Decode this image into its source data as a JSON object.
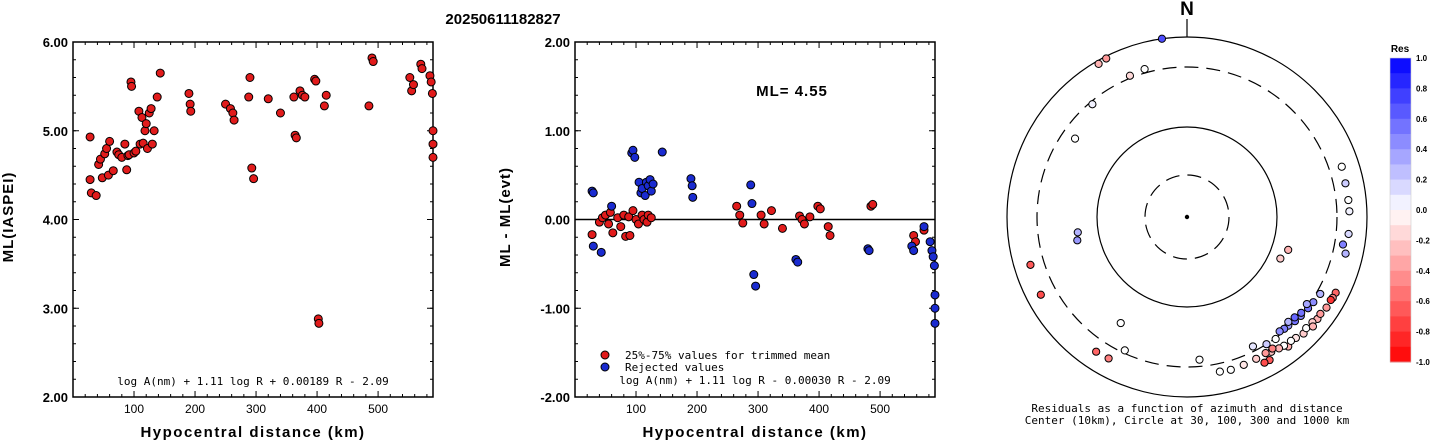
{
  "figure_title": "20250611182827",
  "colors": {
    "red": "#e11b1b",
    "blue": "#1a2bd0",
    "black": "#000000"
  },
  "chart_data": [
    {
      "type": "scatter",
      "ylabel": "ML(IASPEI)",
      "xlabel": "Hypocentral distance (km)",
      "xlim": [
        0,
        590
      ],
      "ylim": [
        2.0,
        6.0
      ],
      "xticks": [
        100,
        200,
        300,
        400,
        500
      ],
      "yticks": [
        2.0,
        3.0,
        4.0,
        5.0,
        6.0
      ],
      "ytick_labels": [
        "2.00",
        "3.00",
        "4.00",
        "5.00",
        "6.00"
      ],
      "formula": "log A(nm) + 1.11 log R + 0.00189 R - 2.09",
      "series": [
        {
          "color": "red",
          "points": [
            [
              28,
              4.93
            ],
            [
              28,
              4.45
            ],
            [
              30,
              4.3
            ],
            [
              38,
              4.27
            ],
            [
              42,
              4.62
            ],
            [
              45,
              4.68
            ],
            [
              48,
              4.47
            ],
            [
              52,
              4.74
            ],
            [
              55,
              4.8
            ],
            [
              58,
              4.5
            ],
            [
              60,
              4.88
            ],
            [
              66,
              4.55
            ],
            [
              72,
              4.76
            ],
            [
              75,
              4.73
            ],
            [
              80,
              4.7
            ],
            [
              85,
              4.85
            ],
            [
              88,
              4.56
            ],
            [
              90,
              4.72
            ],
            [
              92,
              4.73
            ],
            [
              95,
              5.55
            ],
            [
              96,
              5.5
            ],
            [
              100,
              4.75
            ],
            [
              103,
              4.77
            ],
            [
              108,
              5.22
            ],
            [
              110,
              4.85
            ],
            [
              113,
              5.15
            ],
            [
              115,
              4.86
            ],
            [
              118,
              5.0
            ],
            [
              120,
              5.08
            ],
            [
              122,
              4.8
            ],
            [
              125,
              5.2
            ],
            [
              128,
              5.25
            ],
            [
              130,
              4.85
            ],
            [
              133,
              5.0
            ],
            [
              138,
              5.38
            ],
            [
              143,
              5.65
            ],
            [
              190,
              5.42
            ],
            [
              192,
              5.3
            ],
            [
              193,
              5.22
            ],
            [
              250,
              5.3
            ],
            [
              258,
              5.25
            ],
            [
              262,
              5.2
            ],
            [
              264,
              5.12
            ],
            [
              288,
              5.38
            ],
            [
              290,
              5.6
            ],
            [
              293,
              4.58
            ],
            [
              296,
              4.46
            ],
            [
              320,
              5.36
            ],
            [
              340,
              5.2
            ],
            [
              362,
              5.38
            ],
            [
              364,
              4.95
            ],
            [
              366,
              4.92
            ],
            [
              372,
              5.45
            ],
            [
              376,
              5.4
            ],
            [
              380,
              5.38
            ],
            [
              396,
              5.58
            ],
            [
              398,
              5.56
            ],
            [
              402,
              2.88
            ],
            [
              403,
              2.83
            ],
            [
              412,
              5.28
            ],
            [
              415,
              5.4
            ],
            [
              485,
              5.28
            ],
            [
              490,
              5.82
            ],
            [
              492,
              5.78
            ],
            [
              552,
              5.6
            ],
            [
              555,
              5.45
            ],
            [
              558,
              5.52
            ],
            [
              570,
              5.75
            ],
            [
              572,
              5.7
            ],
            [
              585,
              5.62
            ],
            [
              587,
              5.55
            ],
            [
              589,
              5.42
            ],
            [
              590,
              5.0
            ],
            [
              590,
              4.85
            ],
            [
              590,
              4.7
            ]
          ]
        }
      ]
    },
    {
      "type": "scatter",
      "ylabel": "ML - ML(evt)",
      "xlabel": "Hypocentral distance (km)",
      "xlim": [
        0,
        590
      ],
      "ylim": [
        -2.0,
        2.0
      ],
      "xticks": [
        100,
        200,
        300,
        400,
        500
      ],
      "yticks": [
        -2.0,
        -1.0,
        0.0,
        1.0,
        2.0
      ],
      "ytick_labels": [
        "-2.00",
        "-1.00",
        "0.00",
        "1.00",
        "2.00"
      ],
      "annotation": "ML= 4.55",
      "formula": "log A(nm) + 1.11 log R - 0.00030 R - 2.09",
      "legend": [
        {
          "label": "25%-75% values for trimmed mean",
          "color": "red"
        },
        {
          "label": "Rejected values",
          "color": "blue"
        }
      ],
      "series": [
        {
          "name": "25%-75% values for trimmed mean",
          "color": "red",
          "points": [
            [
              28,
              -0.17
            ],
            [
              40,
              -0.03
            ],
            [
              45,
              0.02
            ],
            [
              50,
              0.05
            ],
            [
              55,
              -0.05
            ],
            [
              58,
              0.08
            ],
            [
              62,
              -0.15
            ],
            [
              70,
              0.02
            ],
            [
              75,
              -0.08
            ],
            [
              80,
              0.05
            ],
            [
              83,
              -0.19
            ],
            [
              88,
              0.03
            ],
            [
              90,
              -0.18
            ],
            [
              95,
              0.1
            ],
            [
              100,
              0.0
            ],
            [
              104,
              -0.05
            ],
            [
              110,
              0.05
            ],
            [
              113,
              0.0
            ],
            [
              118,
              -0.03
            ],
            [
              120,
              0.05
            ],
            [
              125,
              0.02
            ],
            [
              265,
              0.15
            ],
            [
              270,
              0.05
            ],
            [
              275,
              -0.04
            ],
            [
              305,
              0.05
            ],
            [
              310,
              -0.05
            ],
            [
              322,
              0.1
            ],
            [
              340,
              -0.1
            ],
            [
              368,
              0.04
            ],
            [
              372,
              0.0
            ],
            [
              376,
              -0.05
            ],
            [
              385,
              0.03
            ],
            [
              398,
              0.15
            ],
            [
              402,
              0.12
            ],
            [
              415,
              -0.08
            ],
            [
              418,
              -0.18
            ],
            [
              485,
              0.15
            ],
            [
              488,
              0.17
            ],
            [
              555,
              -0.18
            ],
            [
              558,
              -0.25
            ],
            [
              572,
              -0.12
            ]
          ]
        },
        {
          "name": "Rejected values",
          "color": "blue",
          "points": [
            [
              28,
              0.32
            ],
            [
              30,
              0.3
            ],
            [
              30,
              -0.3
            ],
            [
              43,
              -0.37
            ],
            [
              60,
              0.15
            ],
            [
              93,
              0.75
            ],
            [
              95,
              0.78
            ],
            [
              98,
              0.7
            ],
            [
              105,
              0.42
            ],
            [
              108,
              0.3
            ],
            [
              110,
              0.35
            ],
            [
              115,
              0.27
            ],
            [
              117,
              0.42
            ],
            [
              120,
              0.38
            ],
            [
              123,
              0.45
            ],
            [
              125,
              0.32
            ],
            [
              128,
              0.4
            ],
            [
              143,
              0.76
            ],
            [
              190,
              0.46
            ],
            [
              192,
              0.38
            ],
            [
              193,
              0.25
            ],
            [
              288,
              0.39
            ],
            [
              290,
              0.18
            ],
            [
              293,
              -0.62
            ],
            [
              296,
              -0.75
            ],
            [
              362,
              -0.45
            ],
            [
              365,
              -0.48
            ],
            [
              480,
              -0.33
            ],
            [
              482,
              -0.35
            ],
            [
              552,
              -0.3
            ],
            [
              555,
              -0.35
            ],
            [
              572,
              -0.08
            ],
            [
              582,
              -0.25
            ],
            [
              585,
              -0.35
            ],
            [
              587,
              -0.42
            ],
            [
              589,
              -0.52
            ],
            [
              590,
              -0.85
            ],
            [
              590,
              -1.0
            ],
            [
              590,
              -1.17
            ]
          ]
        }
      ]
    },
    {
      "type": "polar-scatter",
      "north_label": "N",
      "caption_line1": "Residuals as a function of azimuth and distance",
      "caption_line2": "Center (10km), Circle at 30, 100, 300 and 1000 km",
      "circles_km": [
        30,
        100,
        300,
        1000
      ],
      "colorbar": {
        "title": "Res",
        "ticks": [
          1.0,
          0.8,
          0.6,
          0.4,
          0.2,
          0.0,
          -0.2,
          -0.4,
          -0.6,
          -0.8,
          -1.0
        ],
        "tick_labels": [
          "1.0",
          "0.8",
          "0.6",
          "0.4",
          "0.2",
          "0.0",
          "-0.2",
          "-0.4",
          "-0.6",
          "-0.8",
          "-1.0"
        ]
      },
      "points_note": "[azimuth_deg, distance_km, residual]",
      "points": [
        [
          117,
          590,
          -0.6
        ],
        [
          119,
          585,
          -0.5
        ],
        [
          123,
          578,
          -0.4
        ],
        [
          128,
          560,
          -0.3
        ],
        [
          135,
          545,
          -0.2
        ],
        [
          142,
          535,
          -0.3
        ],
        [
          150,
          552,
          -0.65
        ],
        [
          152,
          548,
          -0.7
        ],
        [
          126,
          545,
          -0.4
        ],
        [
          130,
          520,
          -0.2
        ],
        [
          133,
          505,
          0.0
        ],
        [
          138,
          500,
          -0.1
        ],
        [
          140,
          480,
          0.0
        ],
        [
          143,
          470,
          0.0
        ],
        [
          145,
          455,
          -0.3
        ],
        [
          148,
          430,
          -0.25
        ],
        [
          150,
          400,
          -0.4
        ],
        [
          147,
          395,
          -0.5
        ],
        [
          154,
          410,
          -0.2
        ],
        [
          159,
          420,
          -0.1
        ],
        [
          164,
          430,
          0.0
        ],
        [
          168,
          415,
          0.0
        ],
        [
          120,
          350,
          0.3
        ],
        [
          124,
          330,
          0.45
        ],
        [
          127,
          320,
          0.55
        ],
        [
          131,
          310,
          0.5
        ],
        [
          134,
          300,
          0.55
        ],
        [
          137,
          292,
          0.4
        ],
        [
          139,
          290,
          0.5
        ],
        [
          141,
          285,
          0.45
        ],
        [
          136,
          278,
          0.3
        ],
        [
          133,
          285,
          0.6
        ],
        [
          126,
          290,
          0.35
        ],
        [
          130,
          295,
          0.55
        ],
        [
          148,
          300,
          0.2
        ],
        [
          144,
          310,
          0.0
        ],
        [
          153,
          275,
          0.1
        ],
        [
          175,
          265,
          0.0
        ],
        [
          205,
          285,
          0.0
        ],
        [
          100,
          420,
          0.5
        ],
        [
          96,
          495,
          0.15
        ],
        [
          88,
          495,
          0.05
        ],
        [
          84,
          490,
          0.0
        ],
        [
          78,
          485,
          0.2
        ],
        [
          72,
          500,
          0.0
        ],
        [
          103,
          500,
          0.3
        ],
        [
          242,
          560,
          -0.7
        ],
        [
          253,
          520,
          -0.65
        ],
        [
          214,
          495,
          -0.6
        ],
        [
          209,
          480,
          -0.5
        ],
        [
          333,
          920,
          -0.4
        ],
        [
          330,
          880,
          -0.3
        ],
        [
          344,
          350,
          0.0
        ],
        [
          338,
          330,
          -0.15
        ],
        [
          320,
          285,
          0.05
        ],
        [
          305,
          235,
          0.0
        ],
        [
          262,
          145,
          0.3
        ],
        [
          258,
          150,
          0.4
        ],
        [
          212,
          190,
          0.0
        ],
        [
          114,
          125,
          -0.2
        ],
        [
          108,
          135,
          -0.3
        ],
        [
          352,
          1000,
          0.7
        ],
        [
          120,
          570,
          -0.8
        ],
        [
          131,
          590,
          -0.3
        ]
      ]
    }
  ]
}
